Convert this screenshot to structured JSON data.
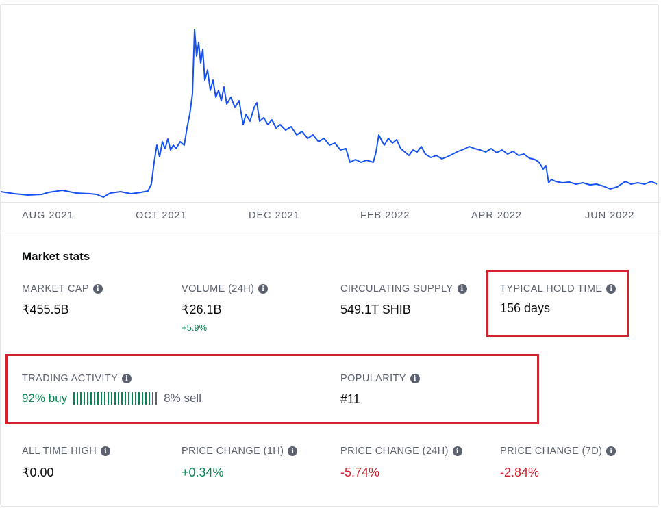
{
  "chart": {
    "line_color": "#1652f0",
    "x_labels": [
      "AUG 2021",
      "OCT 2021",
      "DEC 2021",
      "FEB 2022",
      "APR 2022",
      "JUN 2022"
    ]
  },
  "stats": {
    "title": "Market stats",
    "market_cap": {
      "label": "MARKET CAP",
      "value": "₹455.5B"
    },
    "volume": {
      "label": "VOLUME (24H)",
      "value": "₹26.1B",
      "change": "+5.9%"
    },
    "circulating_supply": {
      "label": "CIRCULATING SUPPLY",
      "value": "549.1T SHIB"
    },
    "hold_time": {
      "label": "TYPICAL HOLD TIME",
      "value": "156 days"
    },
    "trading_activity": {
      "label": "TRADING ACTIVITY",
      "buy": "92% buy",
      "sell": "8% sell",
      "buy_fraction": 0.92
    },
    "popularity": {
      "label": "POPULARITY",
      "value": "#11"
    },
    "all_time_high": {
      "label": "ALL TIME HIGH",
      "value": "₹0.00"
    },
    "price_change_1h": {
      "label": "PRICE CHANGE (1H)",
      "value": "+0.34%"
    },
    "price_change_24h": {
      "label": "PRICE CHANGE (24H)",
      "value": "-5.74%"
    },
    "price_change_7d": {
      "label": "PRICE CHANGE (7D)",
      "value": "-2.84%"
    }
  },
  "colors": {
    "positive": "#098551",
    "negative": "#cf202f",
    "highlight": "#d3222f",
    "sell_bar": "#5b616e"
  }
}
